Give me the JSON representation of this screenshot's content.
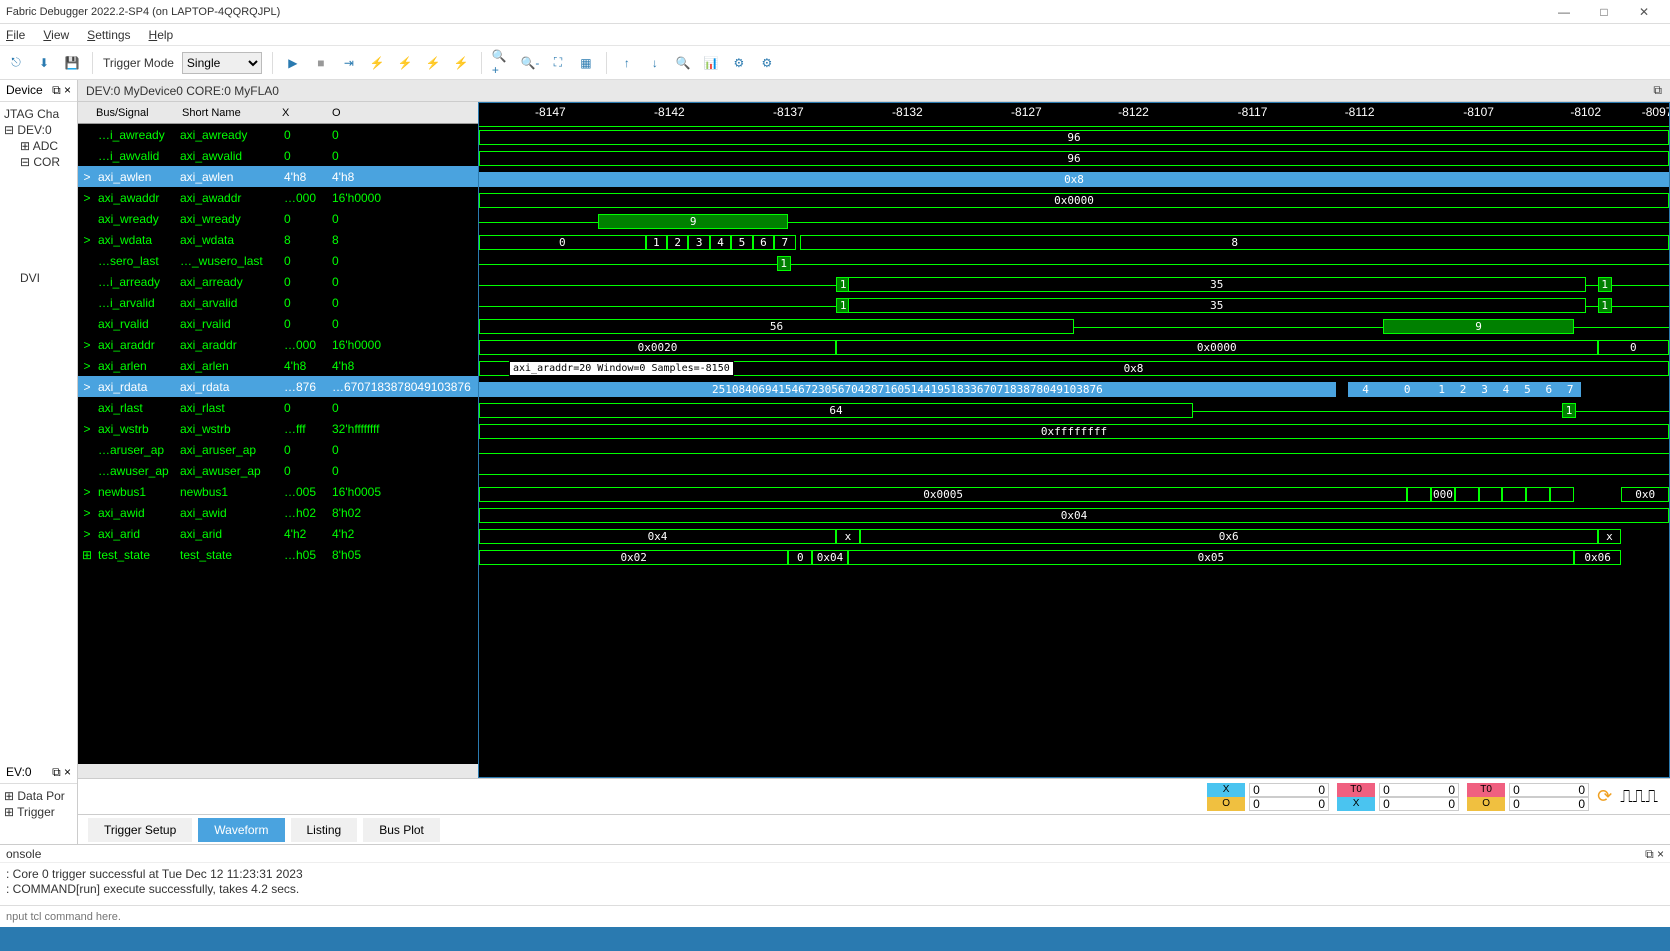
{
  "window": {
    "title": "Fabric Debugger 2022.2-SP4 (on LAPTOP-4QQRQJPL)"
  },
  "menu": {
    "file": "File",
    "view": "View",
    "settings": "Settings",
    "help": "Help"
  },
  "toolbar": {
    "trigger_mode_label": "Trigger Mode",
    "trigger_mode_value": "Single"
  },
  "left_tabs": {
    "device": "Device",
    "jtag": "JTAG Cha"
  },
  "tree": {
    "dev0": "DEV:0",
    "adc": "ADC",
    "cor": "COR",
    "dvi": "DVI",
    "sec_hdr": "EV:0",
    "data_port": "Data Por",
    "trigger": "Trigger"
  },
  "device_header": "DEV:0 MyDevice0 CORE:0 MyFLA0",
  "sig_cols": {
    "bus": "Bus/Signal",
    "short": "Short Name",
    "x": "X",
    "o": "O"
  },
  "signals": [
    {
      "exp": "",
      "n": "…i_awready",
      "s": "axi_awready",
      "x": "0",
      "o": "0",
      "sel": false
    },
    {
      "exp": "",
      "n": "…i_awvalid",
      "s": "axi_awvalid",
      "x": "0",
      "o": "0",
      "sel": false
    },
    {
      "exp": ">",
      "n": "axi_awlen",
      "s": "axi_awlen",
      "x": "4'h8",
      "o": "4'h8",
      "sel": true
    },
    {
      "exp": ">",
      "n": "axi_awaddr",
      "s": "axi_awaddr",
      "x": "…000",
      "o": "16'h0000",
      "sel": false
    },
    {
      "exp": "",
      "n": "axi_wready",
      "s": "axi_wready",
      "x": "0",
      "o": "0",
      "sel": false
    },
    {
      "exp": ">",
      "n": "axi_wdata",
      "s": "axi_wdata",
      "x": "8",
      "o": "8",
      "sel": false
    },
    {
      "exp": "",
      "n": "…sero_last",
      "s": "…_wusero_last",
      "x": "0",
      "o": "0",
      "sel": false
    },
    {
      "exp": "",
      "n": "…i_arready",
      "s": "axi_arready",
      "x": "0",
      "o": "0",
      "sel": false
    },
    {
      "exp": "",
      "n": "…i_arvalid",
      "s": "axi_arvalid",
      "x": "0",
      "o": "0",
      "sel": false
    },
    {
      "exp": "",
      "n": "axi_rvalid",
      "s": "axi_rvalid",
      "x": "0",
      "o": "0",
      "sel": false
    },
    {
      "exp": ">",
      "n": "axi_araddr",
      "s": "axi_araddr",
      "x": "…000",
      "o": "16'h0000",
      "sel": false
    },
    {
      "exp": ">",
      "n": "axi_arlen",
      "s": "axi_arlen",
      "x": "4'h8",
      "o": "4'h8",
      "sel": false
    },
    {
      "exp": ">",
      "n": "axi_rdata",
      "s": "axi_rdata",
      "x": "…876",
      "o": "…6707183878049103876",
      "sel": true
    },
    {
      "exp": "",
      "n": "axi_rlast",
      "s": "axi_rlast",
      "x": "0",
      "o": "0",
      "sel": false
    },
    {
      "exp": ">",
      "n": "axi_wstrb",
      "s": "axi_wstrb",
      "x": "…fff",
      "o": "32'hffffffff",
      "sel": false
    },
    {
      "exp": "",
      "n": "…aruser_ap",
      "s": "axi_aruser_ap",
      "x": "0",
      "o": "0",
      "sel": false
    },
    {
      "exp": "",
      "n": "…awuser_ap",
      "s": "axi_awuser_ap",
      "x": "0",
      "o": "0",
      "sel": false
    },
    {
      "exp": ">",
      "n": "newbus1",
      "s": "newbus1",
      "x": "…005",
      "o": "16'h0005",
      "sel": false
    },
    {
      "exp": ">",
      "n": "axi_awid",
      "s": "axi_awid",
      "x": "…h02",
      "o": "8'h02",
      "sel": false
    },
    {
      "exp": ">",
      "n": "axi_arid",
      "s": "axi_arid",
      "x": "4'h2",
      "o": "4'h2",
      "sel": false
    },
    {
      "exp": "⊞",
      "n": "test_state",
      "s": "test_state",
      "x": "…h05",
      "o": "8'h05",
      "sel": false
    }
  ],
  "ruler_ticks": [
    {
      "v": "-8147",
      "p": 6
    },
    {
      "v": "-8142",
      "p": 16
    },
    {
      "v": "-8137",
      "p": 26
    },
    {
      "v": "-8132",
      "p": 36
    },
    {
      "v": "-8127",
      "p": 46
    },
    {
      "v": "-8122",
      "p": 55
    },
    {
      "v": "-8117",
      "p": 65
    },
    {
      "v": "-8112",
      "p": 74
    },
    {
      "v": "-8107",
      "p": 84
    },
    {
      "v": "-8102",
      "p": 93
    },
    {
      "v": "-8097",
      "p": 99
    }
  ],
  "wave_tooltip": "axi_araddr=20 Window=0 Samples=-8150",
  "wave_values": {
    "r0": "96",
    "r1": "96",
    "r2": "0x8",
    "r3": "0x0000",
    "r4_pulse": "9",
    "r5_zero": "0",
    "r5_seq": [
      "1",
      "2",
      "3",
      "4",
      "5",
      "6",
      "7"
    ],
    "r5_eight": "8",
    "r6_one": "1",
    "r7_val": "35",
    "r7_one": "1",
    "r8_val": "35",
    "r8_one": "1",
    "r9_56": "56",
    "r9_9": "9",
    "r10_left": "0x0020",
    "r10_right": "0x0000",
    "r10_tail": "0",
    "r11_val": "0x8",
    "r12_long": "25108406941546723056704287160514419518336707183878049103876",
    "r12_4": "4",
    "r12_0": "0",
    "r12_seq": [
      "1",
      "2",
      "3",
      "4",
      "5",
      "6",
      "7"
    ],
    "r13_64": "64",
    "r13_1": "1",
    "r14": "0xffffffff",
    "r17_left": "0x0005",
    "r17_mid": "000",
    "r17_tail": "0x0",
    "r18": "0x04",
    "r19_a": "0x4",
    "r19_x": "x",
    "r19_b": "0x6",
    "r19_x2": "x",
    "r20_a": "0x02",
    "r20_m": "0",
    "r20_b": "0x04",
    "r20_c": "0x05",
    "r20_d": "0x06"
  },
  "cursors": {
    "x_label": "X",
    "o_label": "O",
    "t0_label": "T0",
    "zero": "0"
  },
  "tabs": {
    "ts": "Trigger Setup",
    "wf": "Waveform",
    "ls": "Listing",
    "bp": "Bus Plot"
  },
  "console": {
    "title": "onsole",
    "line1": ": Core 0 trigger successful at Tue Dec 12 11:23:31 2023",
    "line2": ": COMMAND[run] execute successfully, takes 4.2 secs.",
    "placeholder": "nput tcl command here."
  }
}
